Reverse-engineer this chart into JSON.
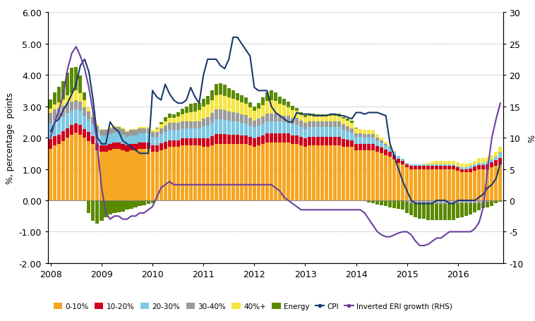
{
  "ylabel_left": "%, percentage  points",
  "ylabel_right": "%",
  "ylim_left": [
    -2.0,
    6.0
  ],
  "ylim_right": [
    -10,
    30
  ],
  "yticks_left": [
    -2.0,
    -1.0,
    0.0,
    1.0,
    2.0,
    3.0,
    4.0,
    5.0,
    6.0
  ],
  "yticks_right": [
    -10,
    -5,
    0,
    5,
    10,
    15,
    20,
    25,
    30
  ],
  "colors": {
    "band0_10": "#F5A623",
    "band10_20": "#D0021B",
    "band20_30": "#7EC8E3",
    "band30_40": "#9B9B9B",
    "band40plus": "#F5E642",
    "energy": "#5A8A00",
    "cpi": "#1a3a6b",
    "eri": "#6B3FA0"
  },
  "band0_10": [
    1.65,
    1.75,
    1.8,
    1.9,
    2.0,
    2.1,
    2.15,
    2.1,
    2.0,
    1.9,
    1.8,
    1.6,
    1.55,
    1.55,
    1.6,
    1.65,
    1.65,
    1.6,
    1.55,
    1.6,
    1.6,
    1.65,
    1.65,
    1.65,
    1.55,
    1.55,
    1.6,
    1.65,
    1.7,
    1.7,
    1.7,
    1.75,
    1.75,
    1.75,
    1.75,
    1.75,
    1.7,
    1.7,
    1.75,
    1.8,
    1.8,
    1.8,
    1.8,
    1.8,
    1.8,
    1.8,
    1.8,
    1.75,
    1.7,
    1.75,
    1.8,
    1.85,
    1.85,
    1.85,
    1.85,
    1.85,
    1.85,
    1.8,
    1.8,
    1.75,
    1.7,
    1.75,
    1.75,
    1.75,
    1.75,
    1.75,
    1.75,
    1.75,
    1.75,
    1.7,
    1.7,
    1.7,
    1.6,
    1.6,
    1.6,
    1.6,
    1.6,
    1.55,
    1.5,
    1.45,
    1.4,
    1.3,
    1.2,
    1.15,
    1.05,
    1.0,
    1.0,
    1.0,
    1.0,
    1.0,
    1.0,
    1.0,
    1.0,
    1.0,
    1.0,
    1.0,
    0.95,
    0.9,
    0.9,
    0.9,
    0.95,
    1.0,
    1.0,
    1.0,
    1.05,
    1.1,
    1.15
  ],
  "band10_20": [
    0.3,
    0.3,
    0.3,
    0.3,
    0.3,
    0.3,
    0.3,
    0.3,
    0.28,
    0.28,
    0.25,
    0.22,
    0.2,
    0.2,
    0.2,
    0.2,
    0.2,
    0.2,
    0.2,
    0.2,
    0.2,
    0.2,
    0.2,
    0.2,
    0.2,
    0.2,
    0.22,
    0.22,
    0.22,
    0.22,
    0.22,
    0.22,
    0.22,
    0.22,
    0.22,
    0.22,
    0.28,
    0.28,
    0.3,
    0.32,
    0.32,
    0.32,
    0.3,
    0.3,
    0.3,
    0.28,
    0.28,
    0.28,
    0.28,
    0.28,
    0.28,
    0.28,
    0.28,
    0.28,
    0.28,
    0.28,
    0.28,
    0.28,
    0.28,
    0.28,
    0.28,
    0.28,
    0.28,
    0.28,
    0.28,
    0.28,
    0.28,
    0.28,
    0.28,
    0.26,
    0.24,
    0.22,
    0.2,
    0.2,
    0.2,
    0.2,
    0.2,
    0.18,
    0.18,
    0.16,
    0.15,
    0.14,
    0.13,
    0.12,
    0.1,
    0.1,
    0.1,
    0.1,
    0.1,
    0.1,
    0.1,
    0.1,
    0.1,
    0.1,
    0.1,
    0.1,
    0.1,
    0.1,
    0.1,
    0.12,
    0.12,
    0.12,
    0.12,
    0.14,
    0.16,
    0.18,
    0.2
  ],
  "band20_30": [
    0.5,
    0.5,
    0.5,
    0.48,
    0.48,
    0.45,
    0.45,
    0.45,
    0.42,
    0.4,
    0.38,
    0.35,
    0.32,
    0.32,
    0.32,
    0.32,
    0.3,
    0.3,
    0.28,
    0.28,
    0.28,
    0.28,
    0.28,
    0.28,
    0.28,
    0.28,
    0.3,
    0.32,
    0.33,
    0.33,
    0.33,
    0.33,
    0.33,
    0.33,
    0.33,
    0.33,
    0.38,
    0.4,
    0.43,
    0.46,
    0.46,
    0.45,
    0.44,
    0.43,
    0.42,
    0.4,
    0.38,
    0.36,
    0.35,
    0.36,
    0.38,
    0.4,
    0.4,
    0.4,
    0.38,
    0.36,
    0.35,
    0.34,
    0.33,
    0.32,
    0.3,
    0.3,
    0.3,
    0.3,
    0.3,
    0.3,
    0.3,
    0.3,
    0.3,
    0.28,
    0.26,
    0.24,
    0.22,
    0.22,
    0.2,
    0.2,
    0.2,
    0.18,
    0.16,
    0.14,
    0.12,
    0.1,
    0.08,
    0.06,
    0.05,
    0.05,
    0.05,
    0.05,
    0.05,
    0.05,
    0.05,
    0.05,
    0.05,
    0.05,
    0.05,
    0.05,
    0.06,
    0.06,
    0.06,
    0.08,
    0.08,
    0.08,
    0.08,
    0.1,
    0.1,
    0.12,
    0.15
  ],
  "band30_40": [
    0.35,
    0.35,
    0.35,
    0.33,
    0.33,
    0.3,
    0.3,
    0.3,
    0.28,
    0.25,
    0.22,
    0.2,
    0.18,
    0.18,
    0.18,
    0.18,
    0.18,
    0.18,
    0.16,
    0.16,
    0.16,
    0.16,
    0.16,
    0.16,
    0.16,
    0.16,
    0.18,
    0.2,
    0.22,
    0.22,
    0.22,
    0.22,
    0.22,
    0.22,
    0.22,
    0.22,
    0.25,
    0.28,
    0.3,
    0.32,
    0.33,
    0.32,
    0.3,
    0.28,
    0.27,
    0.27,
    0.27,
    0.25,
    0.22,
    0.22,
    0.22,
    0.24,
    0.24,
    0.24,
    0.22,
    0.22,
    0.22,
    0.22,
    0.22,
    0.2,
    0.2,
    0.2,
    0.2,
    0.2,
    0.2,
    0.2,
    0.2,
    0.2,
    0.2,
    0.18,
    0.16,
    0.14,
    0.12,
    0.12,
    0.12,
    0.12,
    0.12,
    0.1,
    0.08,
    0.06,
    0.04,
    0.02,
    0.01,
    0.0,
    -0.05,
    -0.08,
    -0.1,
    -0.12,
    -0.12,
    -0.12,
    -0.12,
    -0.12,
    -0.12,
    -0.12,
    -0.12,
    -0.12,
    -0.1,
    -0.1,
    -0.1,
    -0.08,
    -0.08,
    -0.08,
    -0.05,
    -0.05,
    -0.02,
    0.0,
    0.02
  ],
  "band40plus": [
    0.12,
    0.15,
    0.18,
    0.2,
    0.25,
    0.28,
    0.3,
    0.28,
    0.22,
    0.15,
    0.1,
    0.05,
    0.03,
    0.03,
    0.03,
    0.04,
    0.04,
    0.04,
    0.03,
    0.03,
    0.03,
    0.05,
    0.05,
    0.05,
    0.06,
    0.1,
    0.12,
    0.14,
    0.16,
    0.16,
    0.2,
    0.23,
    0.26,
    0.3,
    0.32,
    0.36,
    0.38,
    0.4,
    0.42,
    0.45,
    0.46,
    0.45,
    0.44,
    0.43,
    0.4,
    0.38,
    0.35,
    0.32,
    0.3,
    0.32,
    0.36,
    0.4,
    0.42,
    0.4,
    0.36,
    0.32,
    0.28,
    0.25,
    0.22,
    0.2,
    0.18,
    0.18,
    0.18,
    0.18,
    0.18,
    0.18,
    0.18,
    0.18,
    0.18,
    0.18,
    0.18,
    0.18,
    0.15,
    0.14,
    0.12,
    0.12,
    0.12,
    0.1,
    0.08,
    0.06,
    0.04,
    0.02,
    0.0,
    0.0,
    0.0,
    0.0,
    0.0,
    0.0,
    0.02,
    0.05,
    0.08,
    0.1,
    0.1,
    0.1,
    0.1,
    0.1,
    0.1,
    0.1,
    0.1,
    0.1,
    0.12,
    0.14,
    0.14,
    0.14,
    0.14,
    0.16,
    0.18
  ],
  "energy": [
    0.3,
    0.4,
    0.5,
    0.6,
    0.7,
    0.8,
    0.75,
    0.55,
    0.25,
    -0.4,
    -0.65,
    -0.75,
    -0.65,
    -0.55,
    -0.45,
    -0.4,
    -0.38,
    -0.35,
    -0.3,
    -0.26,
    -0.22,
    -0.18,
    -0.15,
    -0.12,
    -0.08,
    0.02,
    0.08,
    0.12,
    0.14,
    0.12,
    0.14,
    0.18,
    0.22,
    0.26,
    0.26,
    0.22,
    0.24,
    0.28,
    0.32,
    0.35,
    0.36,
    0.34,
    0.3,
    0.28,
    0.24,
    0.22,
    0.2,
    0.16,
    0.14,
    0.18,
    0.24,
    0.28,
    0.32,
    0.28,
    0.22,
    0.2,
    0.16,
    0.12,
    0.09,
    0.06,
    0.06,
    0.06,
    0.06,
    0.04,
    0.04,
    0.04,
    0.04,
    0.06,
    0.06,
    0.06,
    0.06,
    0.06,
    0.03,
    0.0,
    -0.03,
    -0.06,
    -0.1,
    -0.13,
    -0.15,
    -0.18,
    -0.22,
    -0.25,
    -0.27,
    -0.3,
    -0.35,
    -0.4,
    -0.45,
    -0.47,
    -0.47,
    -0.5,
    -0.5,
    -0.5,
    -0.5,
    -0.5,
    -0.5,
    -0.5,
    -0.47,
    -0.44,
    -0.4,
    -0.36,
    -0.3,
    -0.24,
    -0.2,
    -0.18,
    -0.15,
    -0.1,
    -0.05
  ],
  "cpi": [
    2.2,
    2.5,
    2.6,
    2.9,
    3.1,
    3.4,
    3.7,
    4.3,
    4.5,
    4.1,
    3.2,
    2.0,
    1.8,
    1.8,
    2.5,
    2.3,
    2.2,
    1.9,
    1.8,
    1.7,
    1.6,
    1.5,
    1.5,
    1.5,
    3.5,
    3.3,
    3.2,
    3.7,
    3.4,
    3.2,
    3.1,
    3.1,
    3.2,
    3.6,
    3.3,
    3.1,
    4.0,
    4.5,
    4.5,
    4.5,
    4.3,
    4.2,
    4.5,
    5.2,
    5.2,
    5.0,
    4.8,
    4.6,
    3.6,
    3.5,
    3.5,
    3.5,
    3.0,
    2.8,
    2.7,
    2.6,
    2.5,
    2.5,
    2.8,
    2.75,
    2.75,
    2.75,
    2.7,
    2.7,
    2.7,
    2.7,
    2.75,
    2.75,
    2.7,
    2.7,
    2.65,
    2.6,
    2.8,
    2.8,
    2.75,
    2.8,
    2.8,
    2.8,
    2.75,
    2.7,
    1.8,
    1.4,
    1.0,
    0.6,
    0.3,
    0.0,
    -0.1,
    -0.1,
    -0.1,
    -0.1,
    -0.1,
    0.0,
    0.0,
    0.0,
    -0.1,
    -0.1,
    0.0,
    0.0,
    0.0,
    0.0,
    0.0,
    0.1,
    0.2,
    0.4,
    0.5,
    0.7,
    1.2
  ],
  "eri": [
    10.0,
    12.5,
    14.5,
    17.0,
    21.0,
    23.5,
    24.5,
    23.0,
    21.0,
    18.0,
    14.0,
    8.5,
    2.0,
    -2.0,
    -3.0,
    -2.5,
    -2.5,
    -3.0,
    -3.0,
    -2.5,
    -2.5,
    -2.0,
    -2.0,
    -1.5,
    -1.0,
    0.5,
    2.0,
    2.5,
    3.0,
    2.5,
    2.5,
    2.5,
    2.5,
    2.5,
    2.5,
    2.5,
    2.5,
    2.5,
    2.5,
    2.5,
    2.5,
    2.5,
    2.5,
    2.5,
    2.5,
    2.5,
    2.5,
    2.5,
    2.5,
    2.5,
    2.5,
    2.5,
    2.5,
    2.0,
    1.5,
    0.5,
    0.0,
    -0.5,
    -1.0,
    -1.5,
    -1.5,
    -1.5,
    -1.5,
    -1.5,
    -1.5,
    -1.5,
    -1.5,
    -1.5,
    -1.5,
    -1.5,
    -1.5,
    -1.5,
    -1.5,
    -1.5,
    -2.0,
    -3.0,
    -4.0,
    -5.0,
    -5.5,
    -5.8,
    -5.8,
    -5.5,
    -5.2,
    -5.0,
    -5.0,
    -5.5,
    -6.5,
    -7.2,
    -7.2,
    -7.0,
    -6.5,
    -6.0,
    -6.0,
    -5.5,
    -5.0,
    -5.0,
    -5.0,
    -5.0,
    -5.0,
    -5.0,
    -4.5,
    -3.5,
    -1.0,
    5.0,
    10.0,
    13.0,
    15.5
  ]
}
